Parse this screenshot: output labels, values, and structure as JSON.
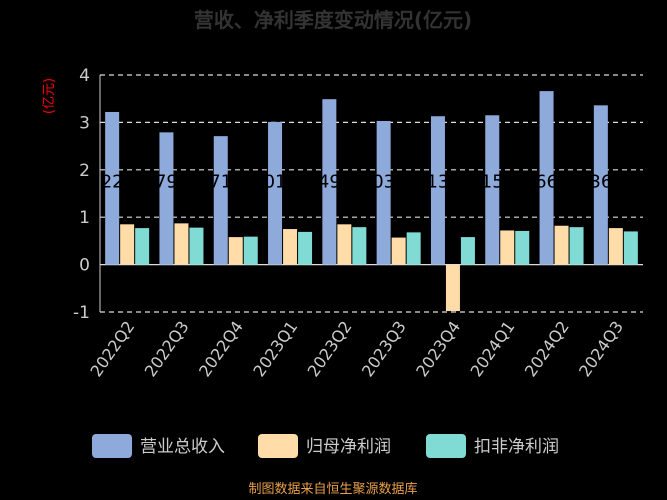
{
  "chart_data": {
    "type": "bar",
    "title": "营收、净利季度变动情况(亿元)",
    "ylabel": "(亿元)",
    "ylim": [
      -1,
      4
    ],
    "yticks": [
      -1,
      0,
      1,
      2,
      3,
      4
    ],
    "grid": true,
    "legend_position": "bottom",
    "categories": [
      "2022Q2",
      "2022Q3",
      "2022Q4",
      "2023Q1",
      "2023Q2",
      "2023Q3",
      "2023Q4",
      "2024Q1",
      "2024Q2",
      "2024Q3"
    ],
    "series": [
      {
        "name": "营业总收入",
        "color": "#8eaadb",
        "values": [
          3.22,
          2.79,
          2.71,
          3.01,
          3.49,
          3.03,
          3.13,
          3.15,
          3.66,
          3.36
        ]
      },
      {
        "name": "归母净利润",
        "color": "#ffdca8",
        "values": [
          0.85,
          0.87,
          0.58,
          0.75,
          0.85,
          0.57,
          -0.98,
          0.72,
          0.82,
          0.77
        ]
      },
      {
        "name": "扣非净利润",
        "color": "#7fdbd4",
        "values": [
          0.77,
          0.78,
          0.59,
          0.69,
          0.79,
          0.68,
          0.58,
          0.71,
          0.79,
          0.7
        ]
      }
    ],
    "data_labels": [
      "22",
      "79",
      "71",
      "01",
      "49",
      "03",
      "13",
      "15",
      "66",
      "36"
    ]
  },
  "footer": {
    "source": "制图数据来自恒生聚源数据库"
  },
  "colors": {
    "background": "#000000",
    "axis": "#cccccc",
    "grid": "#dddddd",
    "ylabel": "#ff0000",
    "title": "#333333",
    "source": "#e8a04a",
    "label": "#000000"
  }
}
